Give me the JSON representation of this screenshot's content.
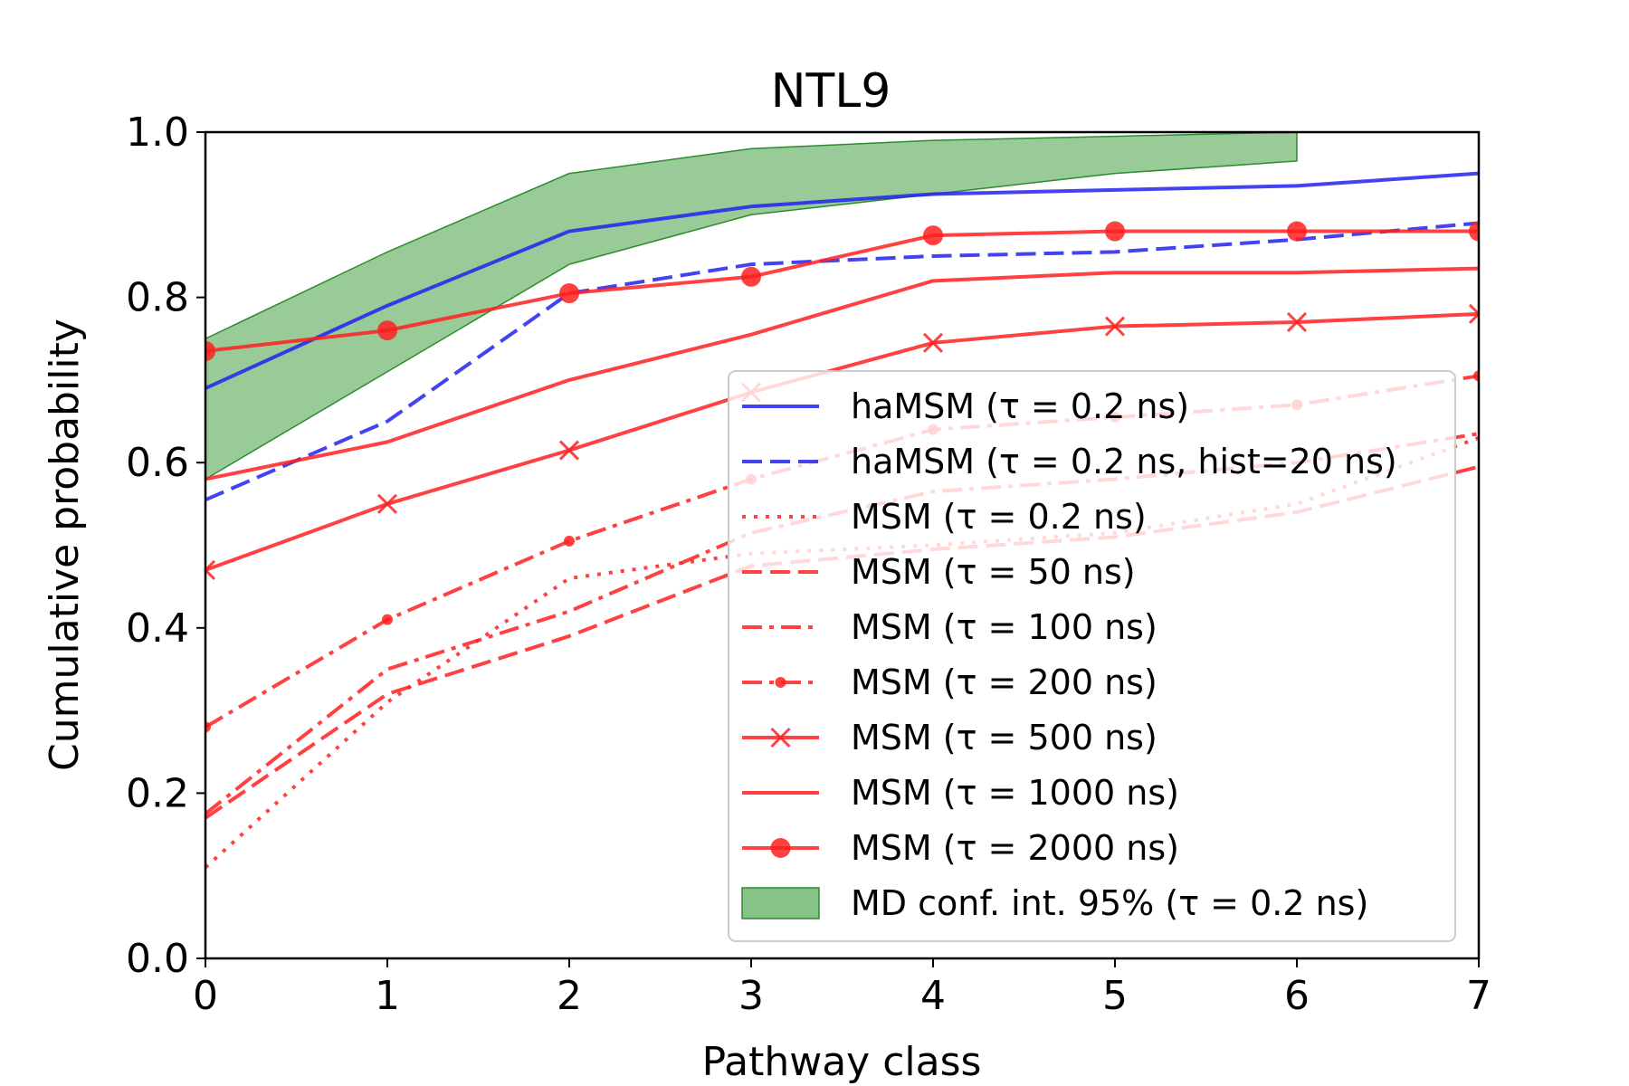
{
  "chart_data": {
    "type": "line",
    "title": "NTL9",
    "xlabel": "Pathway class",
    "ylabel": "Cumulative probability",
    "xlim": [
      0,
      7
    ],
    "ylim": [
      0,
      1.0
    ],
    "xticks": [
      "0",
      "1",
      "2",
      "3",
      "4",
      "5",
      "6",
      "7"
    ],
    "yticks": [
      "0.0",
      "0.2",
      "0.4",
      "0.6",
      "0.8",
      "1.0"
    ],
    "grid": false,
    "legend_position": "lower-right",
    "colors": {
      "blue": "#2222ee",
      "red": "#ff2020",
      "green_fill": "#87c287",
      "green_edge": "#2e8b2e"
    },
    "x": [
      0,
      1,
      2,
      3,
      4,
      5,
      6,
      7
    ],
    "series": [
      {
        "name": "haMSM ($\\tau = 0.2$ ns)",
        "label": "haMSM (τ = 0.2 ns)",
        "color": "blue",
        "style": "solid",
        "marker": "none",
        "values": [
          0.69,
          0.79,
          0.88,
          0.91,
          0.925,
          0.93,
          0.935,
          0.95
        ]
      },
      {
        "name": "haMSM ($\\tau = 0.2$ ns, hist=20 ns)",
        "label": "haMSM (τ = 0.2 ns, hist=20 ns)",
        "color": "blue",
        "style": "dashed",
        "marker": "none",
        "values": [
          0.555,
          0.65,
          0.805,
          0.84,
          0.85,
          0.855,
          0.87,
          0.89
        ]
      },
      {
        "name": "MSM ($\\tau = 0.2$ ns)",
        "label": "MSM (τ = 0.2 ns)",
        "color": "red",
        "style": "dotted",
        "marker": "none",
        "values": [
          0.11,
          0.31,
          0.46,
          0.49,
          0.5,
          0.515,
          0.55,
          0.63
        ]
      },
      {
        "name": "MSM ($\\tau = 50$ ns)",
        "label": "MSM (τ = 50 ns)",
        "color": "red",
        "style": "dashed",
        "marker": "none",
        "values": [
          0.17,
          0.32,
          0.39,
          0.475,
          0.495,
          0.51,
          0.54,
          0.595
        ]
      },
      {
        "name": "MSM ($\\tau = 100$ ns)",
        "label": "MSM (τ = 100 ns)",
        "color": "red",
        "style": "dashdot",
        "marker": "none",
        "values": [
          0.175,
          0.35,
          0.42,
          0.515,
          0.565,
          0.58,
          0.6,
          0.635
        ]
      },
      {
        "name": "MSM ($\\tau = 200$ ns)",
        "label": "MSM (τ = 200 ns)",
        "color": "red",
        "style": "dashdot",
        "marker": "dot",
        "values": [
          0.28,
          0.41,
          0.505,
          0.58,
          0.64,
          0.655,
          0.67,
          0.705
        ]
      },
      {
        "name": "MSM ($\\tau = 500$ ns)",
        "label": "MSM (τ = 500 ns)",
        "color": "red",
        "style": "solid",
        "marker": "x",
        "values": [
          0.47,
          0.55,
          0.615,
          0.685,
          0.745,
          0.765,
          0.77,
          0.78
        ]
      },
      {
        "name": "MSM ($\\tau = 1000$ ns)",
        "label": "MSM (τ = 1000 ns)",
        "color": "red",
        "style": "solid",
        "marker": "none",
        "values": [
          0.58,
          0.625,
          0.7,
          0.755,
          0.82,
          0.83,
          0.83,
          0.835
        ]
      },
      {
        "name": "MSM ($\\tau = 2000$ ns)",
        "label": "MSM (τ = 2000 ns)",
        "color": "red",
        "style": "solid",
        "marker": "circle",
        "values": [
          0.735,
          0.76,
          0.805,
          0.825,
          0.875,
          0.88,
          0.88,
          0.88
        ]
      }
    ],
    "band": {
      "name": "MD conf. int. 95% ($\\tau = 0.2$ ns)",
      "label": "MD conf. int. 95% (τ = 0.2 ns)",
      "x": [
        0,
        1,
        2,
        3,
        4,
        5,
        6
      ],
      "lower": [
        0.58,
        0.71,
        0.84,
        0.9,
        0.925,
        0.95,
        0.965
      ],
      "upper": [
        0.75,
        0.855,
        0.95,
        0.98,
        0.99,
        0.995,
        1.0
      ]
    }
  }
}
